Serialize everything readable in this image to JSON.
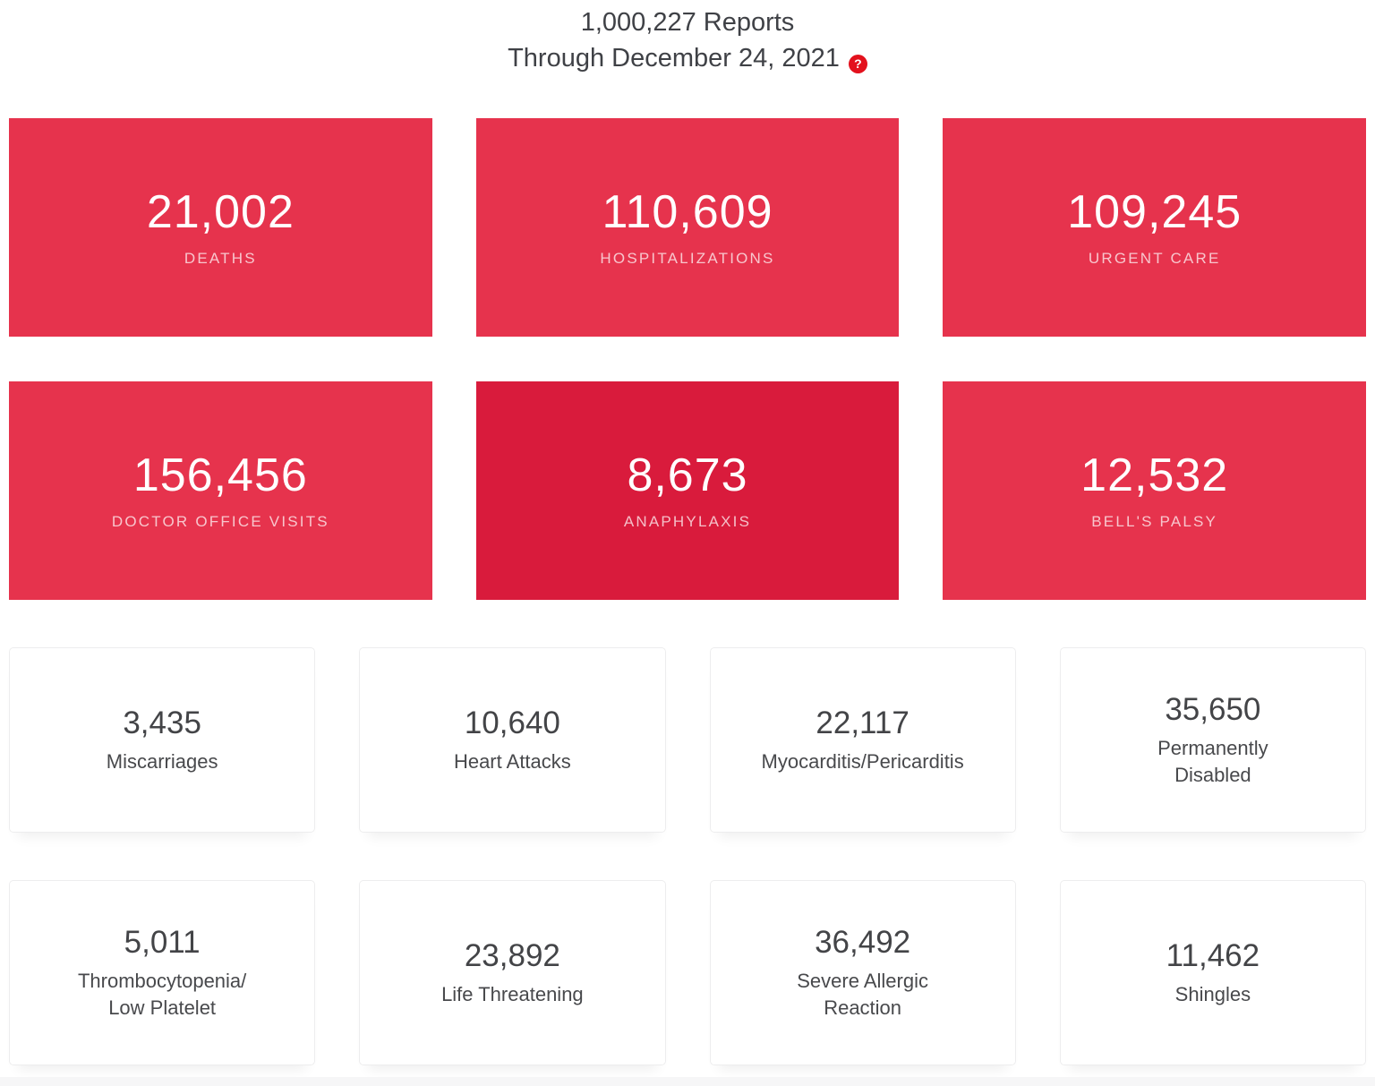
{
  "header": {
    "title_line1": "1,000,227 Reports",
    "title_line2": "Through December 24, 2021",
    "help_glyph": "?"
  },
  "colors": {
    "card_red": "#e6334d",
    "card_red_dark": "#d91b3c",
    "help_icon_red": "#e3111d",
    "red_label_text": "rgba(255,255,255,0.72)",
    "dark_text": "#434447",
    "footer_strip": "#f6f6f7"
  },
  "red_cards": [
    {
      "value": "21,002",
      "label": "DEATHS"
    },
    {
      "value": "110,609",
      "label": "HOSPITALIZATIONS"
    },
    {
      "value": "109,245",
      "label": "URGENT CARE"
    },
    {
      "value": "156,456",
      "label": "DOCTOR OFFICE VISITS"
    },
    {
      "value": "8,673",
      "label": "ANAPHYLAXIS"
    },
    {
      "value": "12,532",
      "label": "BELL'S PALSY"
    }
  ],
  "white_cards": [
    {
      "value": "3,435",
      "label": "Miscarriages"
    },
    {
      "value": "10,640",
      "label": "Heart Attacks"
    },
    {
      "value": "22,117",
      "label": "Myocarditis/Pericarditis"
    },
    {
      "value": "35,650",
      "label": "Permanently\nDisabled"
    },
    {
      "value": "5,011",
      "label": "Thrombocytopenia/\nLow Platelet"
    },
    {
      "value": "23,892",
      "label": "Life Threatening"
    },
    {
      "value": "36,492",
      "label": "Severe Allergic\nReaction"
    },
    {
      "value": "11,462",
      "label": "Shingles"
    }
  ]
}
